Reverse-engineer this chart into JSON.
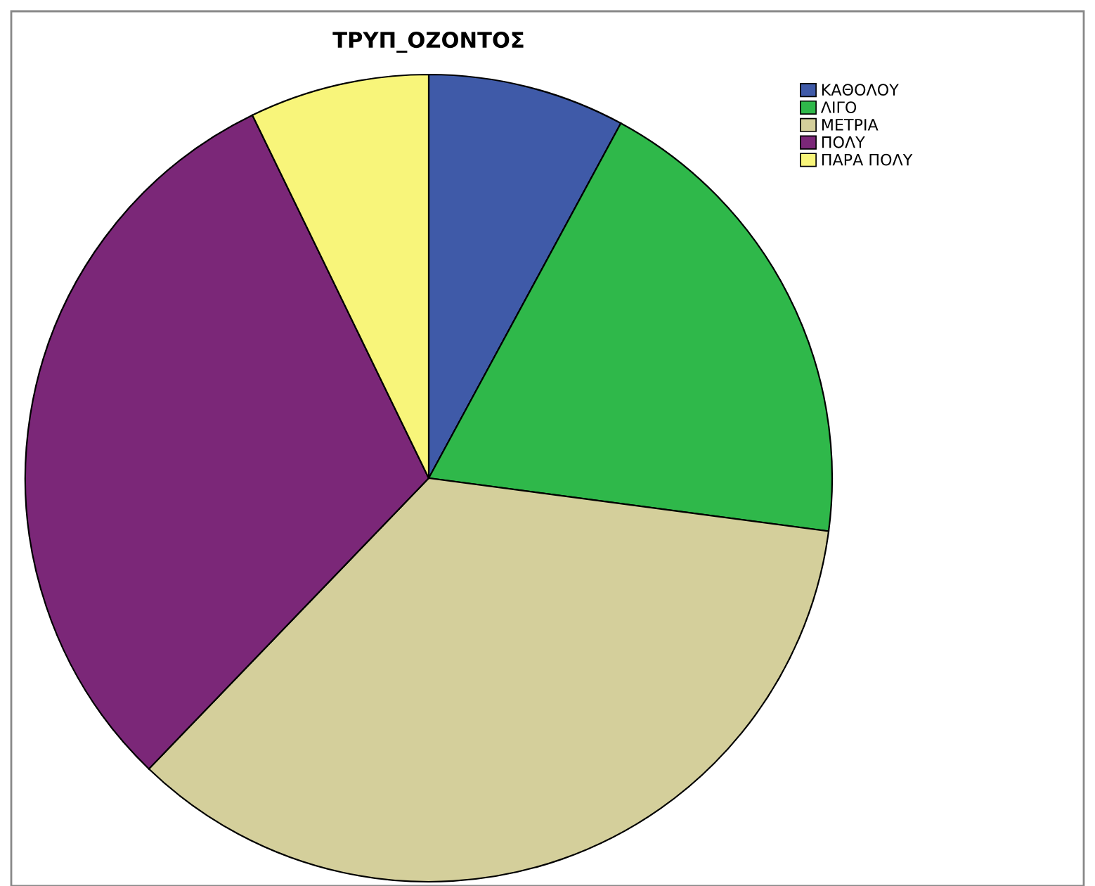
{
  "chart_data": {
    "type": "pie",
    "title": "ΤΡΥΠ_ΟΖΟΝΤΟΣ",
    "categories": [
      "ΚΑΘΟΛΟΥ",
      "ΛΙΓΟ",
      "ΜΕΤΡΙΑ",
      "ΠΟΛΥ",
      "ΠΑΡΑ ΠΟΛΥ"
    ],
    "values": [
      7.9,
      19.2,
      35.1,
      30.6,
      7.2
    ],
    "colors": [
      "#3f5aa8",
      "#2fb84a",
      "#d4cf9b",
      "#7b2778",
      "#f8f57a"
    ],
    "legend": "top right"
  }
}
